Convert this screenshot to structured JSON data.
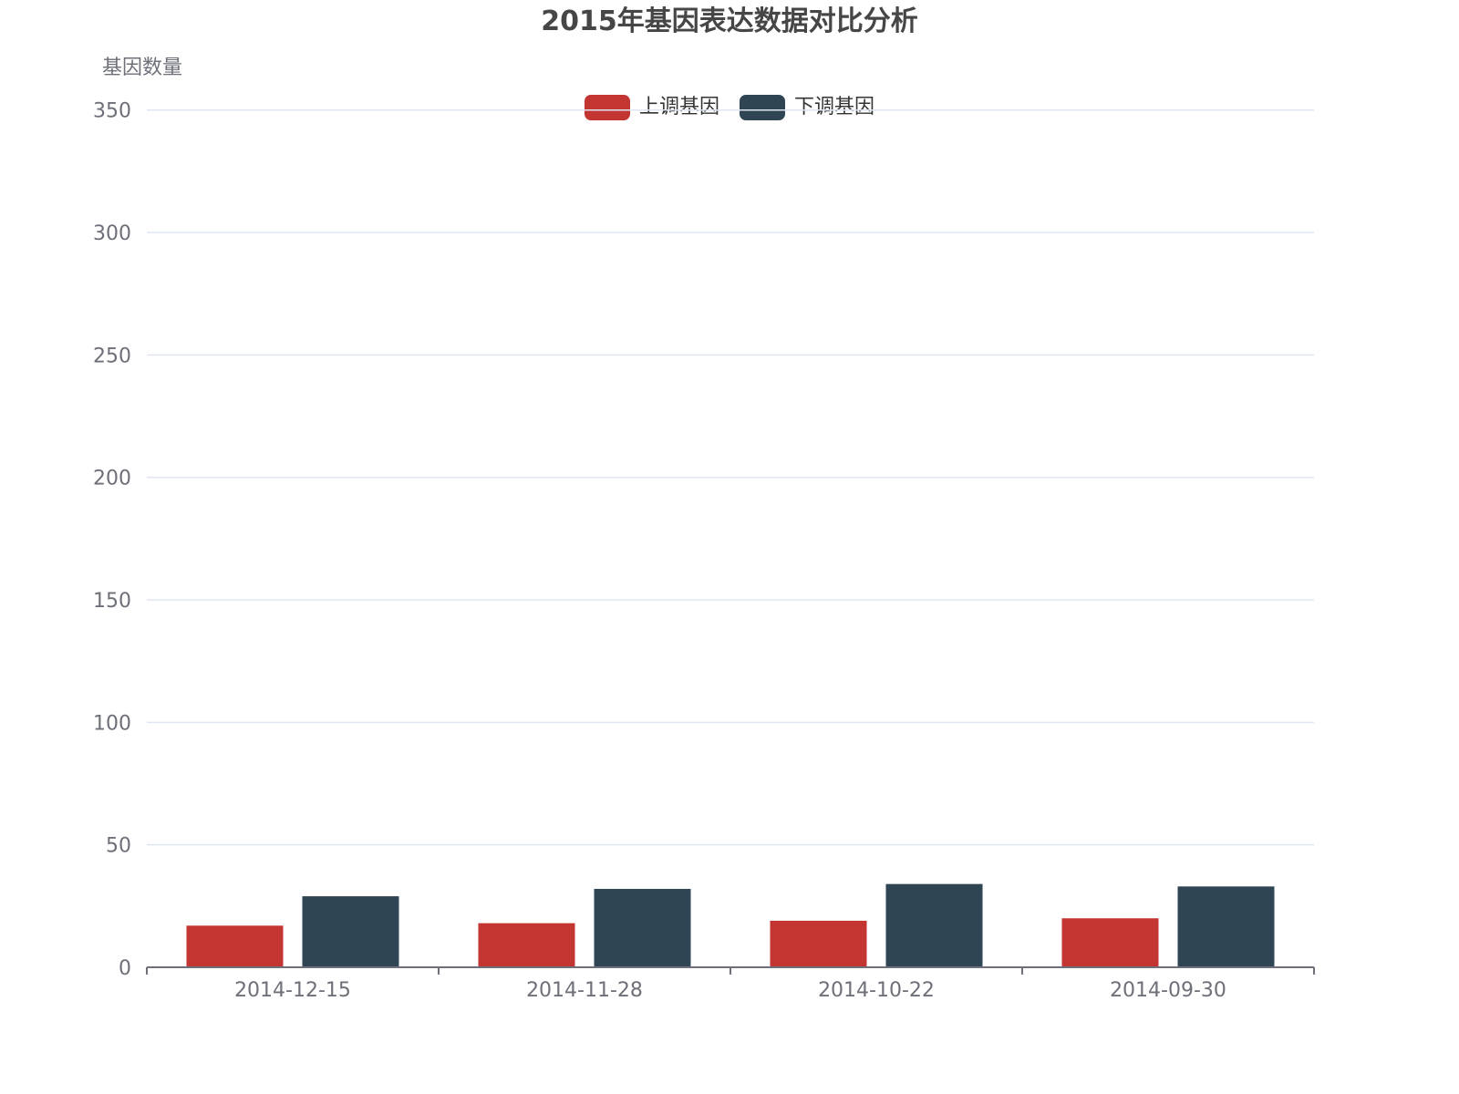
{
  "chart_data": {
    "type": "bar",
    "title": "2015年基因表达数据对比分析",
    "xlabel": "",
    "ylabel": "基因数量",
    "categories": [
      "2014-12-15",
      "2014-11-28",
      "2014-10-22",
      "2014-09-30"
    ],
    "series": [
      {
        "name": "上调基因",
        "color": "#c23531",
        "values": [
          17,
          18,
          19,
          20
        ]
      },
      {
        "name": "下调基因",
        "color": "#2f4554",
        "values": [
          29,
          32,
          34,
          33
        ]
      }
    ],
    "ylim": [
      0,
      350
    ],
    "yticks": [
      0,
      50,
      100,
      150,
      200,
      250,
      300,
      350
    ],
    "grid": true,
    "legend_position": "top-center"
  },
  "title": "2015年基因表达数据对比分析",
  "y_axis_name": "基因数量",
  "legend": [
    {
      "label": "上调基因",
      "color": "#c23531"
    },
    {
      "label": "下调基因",
      "color": "#2f4554"
    }
  ],
  "colors": {
    "grid_line": "#e0e6f1",
    "axis_line": "#6e7079",
    "axis_label": "#6e7079",
    "title": "#464646"
  }
}
